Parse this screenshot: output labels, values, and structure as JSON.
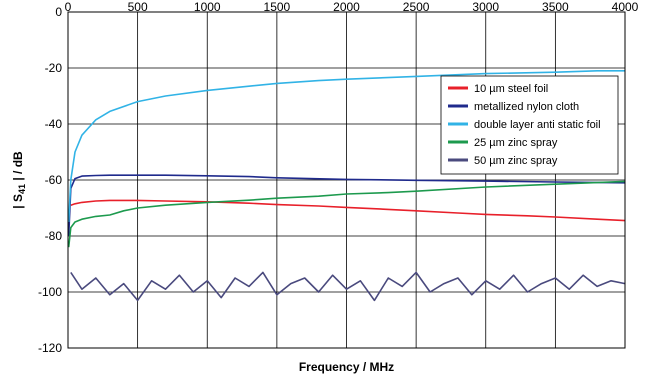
{
  "chart_data": {
    "type": "line",
    "xlabel": "Frequency / MHz",
    "ylabel_prefix": "| S",
    "ylabel_sub": "41",
    "ylabel_suffix": " | / dB",
    "xlim": [
      0,
      4000
    ],
    "ylim": [
      -120,
      0
    ],
    "xticks": [
      0,
      500,
      1000,
      1500,
      2000,
      2500,
      3000,
      3500,
      4000
    ],
    "yticks": [
      0,
      -20,
      -40,
      -60,
      -80,
      -100,
      -120
    ],
    "grid": true,
    "legend_position": "right",
    "series": [
      {
        "name": "10 µm steel foil",
        "color": "#e8202a",
        "x": [
          20,
          50,
          100,
          200,
          300,
          500,
          700,
          1000,
          1300,
          1500,
          1800,
          2000,
          2300,
          2500,
          2800,
          3000,
          3300,
          3500,
          3800,
          4000
        ],
        "y": [
          -69,
          -68.5,
          -68,
          -67.5,
          -67.3,
          -67.3,
          -67.5,
          -67.8,
          -68.3,
          -68.8,
          -69.3,
          -69.8,
          -70.5,
          -71,
          -71.8,
          -72.3,
          -72.8,
          -73.2,
          -74,
          -74.5
        ]
      },
      {
        "name": "metallized nylon cloth",
        "color": "#1f2a8c",
        "x": [
          5,
          20,
          50,
          100,
          200,
          300,
          500,
          700,
          1000,
          1300,
          1500,
          2000,
          2500,
          3000,
          3500,
          4000
        ],
        "y": [
          -80,
          -63,
          -59.5,
          -58.6,
          -58.4,
          -58.3,
          -58.3,
          -58.3,
          -58.5,
          -58.8,
          -59.2,
          -59.8,
          -60.1,
          -60.4,
          -60.7,
          -61
        ]
      },
      {
        "name": "double layer anti static foil",
        "color": "#31b3e6",
        "x": [
          5,
          20,
          50,
          100,
          200,
          300,
          500,
          700,
          1000,
          1300,
          1500,
          1800,
          2000,
          2500,
          3000,
          3500,
          3800,
          4000
        ],
        "y": [
          -75,
          -60,
          -50,
          -44,
          -38.5,
          -35.5,
          -32,
          -30,
          -28,
          -26.5,
          -25.5,
          -24.5,
          -24,
          -23,
          -22,
          -21.5,
          -21,
          -21
        ]
      },
      {
        "name": "25 µm zinc spray",
        "color": "#1d9a4e",
        "x": [
          5,
          20,
          50,
          100,
          200,
          300,
          400,
          500,
          700,
          1000,
          1300,
          1500,
          1800,
          2000,
          2300,
          2500,
          3000,
          3500,
          4000
        ],
        "y": [
          -84,
          -77,
          -75,
          -74,
          -73,
          -72.5,
          -71,
          -70,
          -69,
          -68,
          -67.2,
          -66.5,
          -65.8,
          -65,
          -64.5,
          -64,
          -62.5,
          -61.5,
          -60.5
        ]
      },
      {
        "name": "50 µm zinc spray",
        "color": "#4a4a7e",
        "x": [
          20,
          100,
          200,
          300,
          400,
          500,
          600,
          700,
          800,
          900,
          1000,
          1100,
          1200,
          1300,
          1400,
          1500,
          1600,
          1700,
          1800,
          1900,
          2000,
          2100,
          2200,
          2300,
          2400,
          2500,
          2600,
          2700,
          2800,
          2900,
          3000,
          3100,
          3200,
          3300,
          3400,
          3500,
          3600,
          3700,
          3800,
          3900,
          4000
        ],
        "y": [
          -93,
          -99,
          -95,
          -101,
          -97,
          -103,
          -96,
          -99,
          -94,
          -100,
          -96,
          -102,
          -95,
          -98,
          -93,
          -101,
          -97,
          -95,
          -100,
          -94,
          -99,
          -96,
          -103,
          -95,
          -98,
          -93,
          -100,
          -97,
          -95,
          -101,
          -96,
          -99,
          -94,
          -100,
          -97,
          -95,
          -99,
          -94,
          -98,
          -96,
          -97
        ]
      }
    ]
  }
}
